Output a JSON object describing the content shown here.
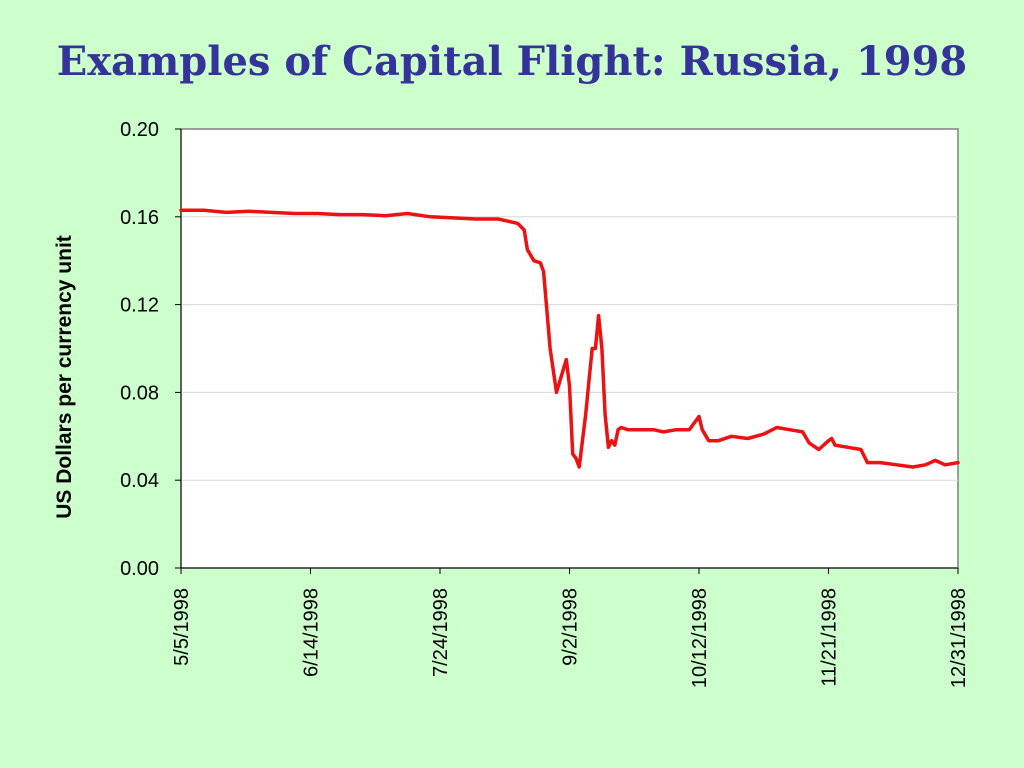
{
  "slide": {
    "title": "Examples of Capital Flight:  Russia, 1998",
    "background": "#ccffcc",
    "title_color": "#333399"
  },
  "chart_data": {
    "type": "line",
    "title": "",
    "xlabel": "",
    "ylabel": "US Dollars per currency unit",
    "xlim": [
      "5/5/1998",
      "12/31/1998"
    ],
    "ylim": [
      0.0,
      0.2
    ],
    "y_ticks": [
      "0.00",
      "0.04",
      "0.08",
      "0.12",
      "0.16",
      "0.20"
    ],
    "x_ticks": [
      "5/5/1998",
      "6/14/1998",
      "7/24/1998",
      "9/2/1998",
      "10/12/1998",
      "11/21/1998",
      "12/31/1998"
    ],
    "grid": true,
    "line_color": "#ee1111",
    "series": [
      {
        "x": [
          "5/5/1998",
          "5/12/1998",
          "5/19/1998",
          "5/26/1998",
          "6/2/1998",
          "6/9/1998",
          "6/16/1998",
          "6/23/1998",
          "6/30/1998",
          "7/7/1998",
          "7/14/1998",
          "7/21/1998",
          "7/28/1998",
          "8/4/1998",
          "8/11/1998",
          "8/14/1998",
          "8/17/1998",
          "8/19/1998",
          "8/20/1998",
          "8/22/1998",
          "8/24/1998",
          "8/25/1998",
          "8/27/1998",
          "8/28/1998",
          "8/29/1998",
          "8/31/1998",
          "9/1/1998",
          "9/2/1998",
          "9/3/1998",
          "9/4/1998",
          "9/5/1998",
          "9/7/1998",
          "9/8/1998",
          "9/9/1998",
          "9/10/1998",
          "9/11/1998",
          "9/12/1998",
          "9/13/1998",
          "9/14/1998",
          "9/15/1998",
          "9/16/1998",
          "9/17/1998",
          "9/18/1998",
          "9/20/1998",
          "9/22/1998",
          "9/24/1998",
          "9/26/1998",
          "9/28/1998",
          "10/1/1998",
          "10/5/1998",
          "10/9/1998",
          "10/12/1998",
          "10/13/1998",
          "10/15/1998",
          "10/18/1998",
          "10/22/1998",
          "10/27/1998",
          "11/1/1998",
          "11/5/1998",
          "11/9/1998",
          "11/13/1998",
          "11/15/1998",
          "11/18/1998",
          "11/21/1998",
          "11/22/1998",
          "11/23/1998",
          "11/27/1998",
          "12/1/1998",
          "12/3/1998",
          "12/7/1998",
          "12/12/1998",
          "12/17/1998",
          "12/21/1998",
          "12/24/1998",
          "12/27/1998",
          "12/31/1998"
        ],
        "y": [
          0.163,
          0.163,
          0.162,
          0.1625,
          0.162,
          0.1615,
          0.1615,
          0.161,
          0.161,
          0.1605,
          0.1615,
          0.16,
          0.1595,
          0.159,
          0.159,
          0.158,
          0.157,
          0.154,
          0.145,
          0.14,
          0.139,
          0.135,
          0.1,
          0.09,
          0.08,
          0.09,
          0.095,
          0.083,
          0.052,
          0.05,
          0.046,
          0.07,
          0.085,
          0.1,
          0.1,
          0.115,
          0.1,
          0.07,
          0.055,
          0.058,
          0.056,
          0.063,
          0.064,
          0.063,
          0.063,
          0.063,
          0.063,
          0.063,
          0.062,
          0.063,
          0.063,
          0.069,
          0.063,
          0.058,
          0.058,
          0.06,
          0.059,
          0.061,
          0.064,
          0.063,
          0.062,
          0.057,
          0.054,
          0.058,
          0.059,
          0.056,
          0.055,
          0.054,
          0.048,
          0.048,
          0.047,
          0.046,
          0.047,
          0.049,
          0.047,
          0.048
        ]
      }
    ]
  }
}
